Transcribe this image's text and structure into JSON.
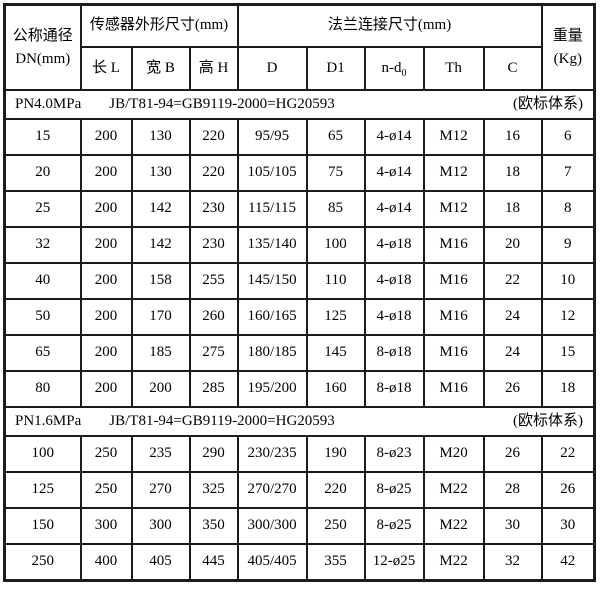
{
  "table": {
    "header": {
      "dn_line1": "公称通径",
      "dn_line2": "DN(mm)",
      "sensor_group": "传感器外形尺寸(mm)",
      "flange_group": "法兰连接尺寸(mm)",
      "weight_line1": "重量",
      "weight_line2": "(Kg)",
      "col_l": "长 L",
      "col_b": "宽 B",
      "col_h": "高 H",
      "col_d": "D",
      "col_d1": "D1",
      "col_nd0_base": "n-d",
      "col_nd0_sub": "0",
      "col_th": "Th",
      "col_c": "C"
    },
    "sections": [
      {
        "pressure": "PN4.0MPa",
        "standard": "JB/T81-94=GB9119-2000=HG20593",
        "note": "(欧标体系)",
        "rows": [
          [
            "15",
            "200",
            "130",
            "220",
            "95/95",
            "65",
            "4-ø14",
            "M12",
            "16",
            "6"
          ],
          [
            "20",
            "200",
            "130",
            "220",
            "105/105",
            "75",
            "4-ø14",
            "M12",
            "18",
            "7"
          ],
          [
            "25",
            "200",
            "142",
            "230",
            "115/115",
            "85",
            "4-ø14",
            "M12",
            "18",
            "8"
          ],
          [
            "32",
            "200",
            "142",
            "230",
            "135/140",
            "100",
            "4-ø18",
            "M16",
            "20",
            "9"
          ],
          [
            "40",
            "200",
            "158",
            "255",
            "145/150",
            "110",
            "4-ø18",
            "M16",
            "22",
            "10"
          ],
          [
            "50",
            "200",
            "170",
            "260",
            "160/165",
            "125",
            "4-ø18",
            "M16",
            "24",
            "12"
          ],
          [
            "65",
            "200",
            "185",
            "275",
            "180/185",
            "145",
            "8-ø18",
            "M16",
            "24",
            "15"
          ],
          [
            "80",
            "200",
            "200",
            "285",
            "195/200",
            "160",
            "8-ø18",
            "M16",
            "26",
            "18"
          ]
        ]
      },
      {
        "pressure": "PN1.6MPa",
        "standard": "JB/T81-94=GB9119-2000=HG20593",
        "note": "(欧标体系)",
        "rows": [
          [
            "100",
            "250",
            "235",
            "290",
            "230/235",
            "190",
            "8-ø23",
            "M20",
            "26",
            "22"
          ],
          [
            "125",
            "250",
            "270",
            "325",
            "270/270",
            "220",
            "8-ø25",
            "M22",
            "28",
            "26"
          ],
          [
            "150",
            "300",
            "300",
            "350",
            "300/300",
            "250",
            "8-ø25",
            "M22",
            "30",
            "30"
          ],
          [
            "250",
            "400",
            "405",
            "445",
            "405/405",
            "355",
            "12-ø25",
            "M22",
            "32",
            "42"
          ]
        ]
      }
    ]
  }
}
